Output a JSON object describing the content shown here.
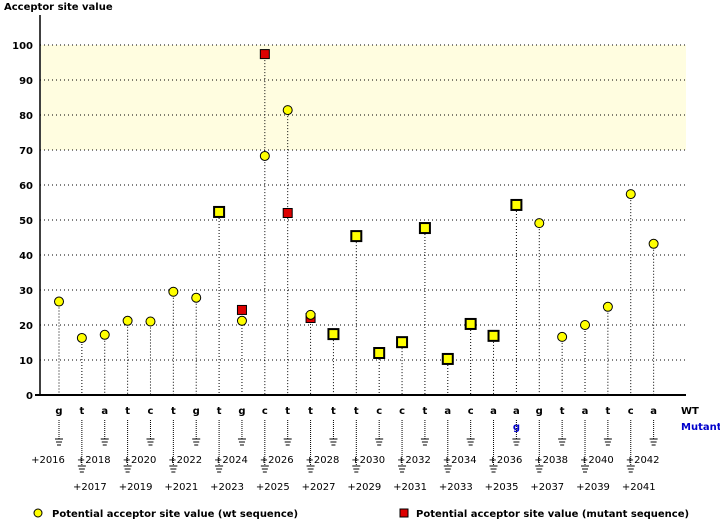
{
  "chart_data": {
    "type": "scatter",
    "ylabel": "Acceptor site value",
    "ylim": [
      0,
      100
    ],
    "yticks": [
      0,
      10,
      20,
      30,
      40,
      50,
      60,
      70,
      80,
      90,
      100
    ],
    "highlight_band": [
      70,
      100
    ],
    "grid": true,
    "positions": [
      "+2016",
      "+2017",
      "+2018",
      "+2019",
      "+2020",
      "+2021",
      "+2022",
      "+2023",
      "+2024",
      "+2025",
      "+2026",
      "+2027",
      "+2028",
      "+2029",
      "+2030",
      "+2031",
      "+2032",
      "+2033",
      "+2034",
      "+2035",
      "+2036",
      "+2037",
      "+2038",
      "+2039",
      "+2040",
      "+2041",
      "+2042"
    ],
    "wt_sequence": [
      "g",
      "t",
      "a",
      "t",
      "c",
      "t",
      "g",
      "t",
      "g",
      "c",
      "t",
      "t",
      "t",
      "t",
      "c",
      "c",
      "t",
      "a",
      "c",
      "a",
      "a",
      "g",
      "t",
      "a",
      "t",
      "c",
      "a"
    ],
    "mutant_sequence": [
      "",
      "",
      "",
      "",
      "",
      "",
      "",
      "",
      "",
      "",
      "",
      "",
      "",
      "",
      "",
      "",
      "",
      "",
      "",
      "",
      "g",
      "",
      "",
      "",
      "",
      "",
      ""
    ],
    "row_labels": {
      "wt": "WT",
      "mutant": "Mutant"
    },
    "series": [
      {
        "name": "Potential acceptor site value (wt sequence)",
        "color": "#ffff00",
        "marker": "circle",
        "values": [
          26.7,
          16.3,
          17.2,
          21.2,
          21.0,
          29.5,
          27.8,
          52.3,
          21.2,
          68.3,
          81.4,
          22.9,
          17.4,
          45.4,
          12.0,
          15.1,
          47.7,
          10.3,
          20.3,
          16.9,
          54.3,
          49.1,
          16.6,
          20.0,
          25.2,
          57.4,
          43.2
        ]
      },
      {
        "name": "Potential acceptor site value (mutant sequence)",
        "color": "#dd0000",
        "marker": "square",
        "values": [
          null,
          null,
          null,
          null,
          null,
          null,
          null,
          52.3,
          24.3,
          97.4,
          52.0,
          22.0,
          17.4,
          45.4,
          12.0,
          15.1,
          47.7,
          10.3,
          20.3,
          16.9,
          54.3,
          null,
          null,
          null,
          null,
          null,
          null
        ]
      }
    ],
    "colors": {
      "mutant_text": "#0000cc",
      "band": "#fffde0"
    }
  }
}
